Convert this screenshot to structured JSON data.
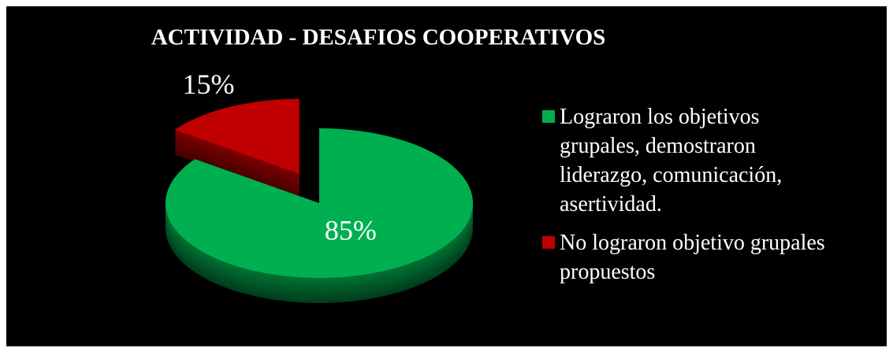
{
  "chart_data": {
    "type": "pie",
    "title": "ACTIVIDAD - DESAFIOS COOPERATIVOS",
    "categories": [
      "Lograron los objetivos grupales, demostraron liderazgo, comunicación, asertividad.",
      "No lograron objetivo grupales propuestos"
    ],
    "values": [
      85,
      15
    ],
    "value_labels": [
      "85%",
      "15%"
    ],
    "colors": [
      "#00b050",
      "#c00000"
    ],
    "exploded": [
      false,
      true
    ],
    "legend": "right"
  }
}
